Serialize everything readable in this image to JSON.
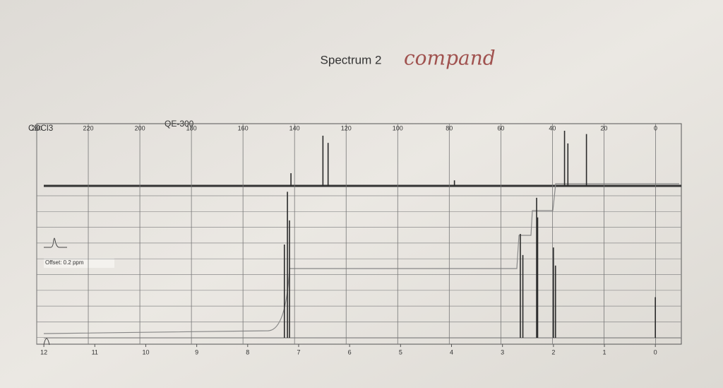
{
  "chart_data": [
    {
      "type": "spectrum",
      "title": "Spectrum 2",
      "annotation": "compand",
      "solvent": "CDCl3",
      "instrument": "QE-300",
      "xlim": [
        240,
        -10
      ],
      "xticks": [
        240,
        220,
        200,
        180,
        160,
        140,
        120,
        100,
        80,
        60,
        40,
        20,
        0
      ],
      "ylim": [
        0,
        100
      ],
      "x": [
        141.4,
        129,
        127,
        78,
        35.3,
        34,
        26.8
      ],
      "values": [
        23,
        91,
        78,
        10,
        100,
        77,
        94
      ],
      "color": "#2a2a2a"
    },
    {
      "type": "spectrum",
      "offset_label": "Offset: 0.2 ppm",
      "xlim": [
        12.14,
        -0.51
      ],
      "xticks": [
        12,
        11,
        10,
        9,
        8,
        7,
        6,
        5,
        4,
        3,
        2,
        1,
        0
      ],
      "ylim": [
        0,
        100
      ],
      "x": [
        7.28,
        7.22,
        7.18,
        2.65,
        2.6,
        2.33,
        2.31,
        2.0,
        1.96,
        0
      ],
      "values": [
        62,
        97,
        78,
        69,
        55,
        93,
        80,
        60,
        48,
        27
      ],
      "color": "#2a2a2a"
    }
  ]
}
